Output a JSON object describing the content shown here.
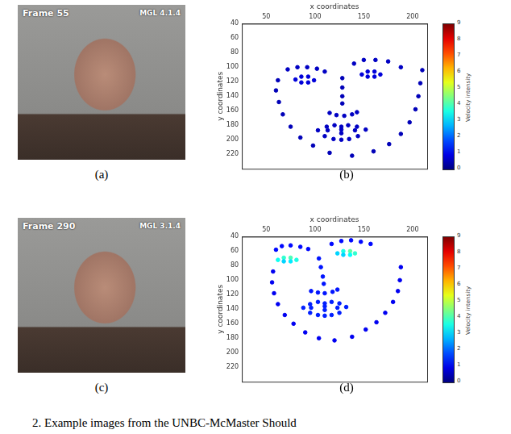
{
  "caption": "2. Example images from the UNBC-McMaster Should",
  "images": [
    {
      "panel": "(a)",
      "frame_label": "Frame 55",
      "id_label": "MGL 4.1.4"
    },
    {
      "panel": "(c)",
      "frame_label": "Frame 290",
      "id_label": "MGL 3.1.4"
    }
  ],
  "chart_data": [
    {
      "type": "scatter",
      "panel": "(b)",
      "x_label": "x coordinates",
      "y_label": "y coordinates",
      "xlim": [
        25,
        215
      ],
      "xticks": [
        50,
        100,
        150,
        200
      ],
      "ylim": [
        240,
        40
      ],
      "yticks": [
        40,
        60,
        80,
        100,
        120,
        140,
        160,
        180,
        200,
        220
      ],
      "grid": false,
      "marker": "circle",
      "x": [
        62,
        60,
        63,
        67,
        75,
        85,
        98,
        115,
        138,
        160,
        176,
        188,
        197,
        203,
        206,
        208,
        210,
        72,
        82,
        92,
        102,
        110,
        140,
        150,
        162,
        175,
        188,
        128,
        128,
        128,
        128,
        115,
        122,
        130,
        138,
        143,
        80,
        86,
        93,
        99,
        93,
        86,
        148,
        154,
        161,
        167,
        161,
        154,
        103,
        112,
        120,
        127,
        134,
        143,
        152,
        144,
        135,
        127,
        119,
        110,
        113,
        127,
        141,
        127
      ],
      "y": [
        118,
        132,
        148,
        165,
        182,
        197,
        208,
        218,
        222,
        216,
        206,
        192,
        176,
        158,
        140,
        122,
        104,
        103,
        100,
        100,
        102,
        106,
        95,
        90,
        90,
        92,
        100,
        115,
        128,
        140,
        150,
        163,
        166,
        167,
        165,
        162,
        117,
        113,
        113,
        118,
        121,
        121,
        110,
        106,
        106,
        110,
        113,
        113,
        187,
        182,
        180,
        182,
        180,
        182,
        186,
        195,
        199,
        200,
        199,
        195,
        187,
        186,
        187,
        191
      ],
      "velocity": [
        0.5,
        0.5,
        0.5,
        0.5,
        0.5,
        0.5,
        0.5,
        0.5,
        0.5,
        0.5,
        0.5,
        0.5,
        0.5,
        0.5,
        0.5,
        0.5,
        0.5,
        0.6,
        0.6,
        0.6,
        0.6,
        0.6,
        0.6,
        0.6,
        0.6,
        0.6,
        0.6,
        0.5,
        0.5,
        0.5,
        0.5,
        0.6,
        0.6,
        0.6,
        0.6,
        0.6,
        0.8,
        0.8,
        0.8,
        0.8,
        0.8,
        0.8,
        0.8,
        0.8,
        0.8,
        0.8,
        0.8,
        0.8,
        0.6,
        0.6,
        0.6,
        0.6,
        0.6,
        0.6,
        0.6,
        0.6,
        0.6,
        0.6,
        0.6,
        0.6,
        0.6,
        0.6,
        0.6,
        0.6
      ],
      "colorbar": {
        "label": "Velocity intensity",
        "range": [
          0,
          9
        ],
        "ticks": [
          0,
          1,
          2,
          3,
          4,
          5,
          6,
          7,
          8,
          9
        ]
      }
    },
    {
      "type": "scatter",
      "panel": "(d)",
      "x_label": "x coordinates",
      "y_label": "y coordinates",
      "xlim": [
        25,
        215
      ],
      "xticks": [
        50,
        100,
        150,
        200
      ],
      "ylim": [
        240,
        40
      ],
      "yticks": [
        40,
        60,
        80,
        100,
        120,
        140,
        160,
        180,
        200,
        220
      ],
      "grid": false,
      "marker": "circle",
      "x": [
        57,
        56,
        58,
        62,
        69,
        78,
        90,
        104,
        120,
        138,
        152,
        163,
        172,
        180,
        185,
        187,
        188,
        60,
        66,
        75,
        85,
        93,
        117,
        127,
        137,
        147,
        157,
        104,
        106,
        108,
        109,
        96,
        103,
        110,
        118,
        123,
        62,
        68,
        75,
        81,
        75,
        68,
        123,
        129,
        136,
        141,
        136,
        129,
        88,
        95,
        103,
        110,
        117,
        125,
        132,
        125,
        117,
        110,
        103,
        95,
        96,
        110,
        123,
        110
      ],
      "y": [
        88,
        103,
        118,
        133,
        148,
        160,
        172,
        180,
        183,
        178,
        168,
        158,
        145,
        130,
        115,
        100,
        82,
        58,
        53,
        52,
        54,
        57,
        50,
        46,
        45,
        47,
        50,
        70,
        82,
        95,
        105,
        115,
        117,
        118,
        116,
        113,
        72,
        69,
        69,
        72,
        74,
        74,
        63,
        60,
        60,
        63,
        65,
        65,
        138,
        133,
        130,
        132,
        130,
        132,
        137,
        145,
        148,
        149,
        148,
        145,
        138,
        136,
        138,
        141
      ],
      "velocity": [
        1.0,
        1.0,
        1.0,
        1.0,
        1.0,
        1.0,
        1.0,
        1.0,
        1.0,
        1.0,
        1.0,
        1.0,
        1.0,
        1.0,
        1.0,
        1.0,
        1.0,
        1.2,
        1.2,
        1.2,
        1.2,
        1.2,
        1.2,
        1.2,
        1.2,
        1.2,
        1.2,
        1.3,
        1.3,
        1.3,
        1.3,
        1.3,
        1.3,
        1.3,
        1.3,
        1.3,
        3.5,
        3.8,
        4.0,
        3.6,
        3.2,
        3.0,
        3.0,
        3.6,
        4.2,
        3.8,
        3.4,
        3.0,
        1.4,
        1.4,
        1.4,
        1.4,
        1.4,
        1.4,
        1.4,
        1.4,
        1.4,
        1.4,
        1.4,
        1.4,
        1.4,
        1.4,
        1.4,
        1.4
      ],
      "colorbar": {
        "label": "Velocity intensity",
        "range": [
          0,
          9
        ],
        "ticks": [
          0,
          1,
          2,
          3,
          4,
          5,
          6,
          7,
          8,
          9
        ]
      }
    }
  ]
}
